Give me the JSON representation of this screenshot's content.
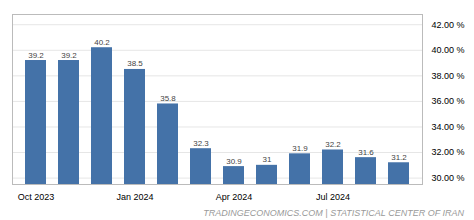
{
  "chart_data": {
    "type": "bar",
    "categories": [
      "Oct 2023",
      null,
      null,
      "Jan 2024",
      null,
      null,
      "Apr 2024",
      null,
      null,
      "Jul 2024",
      null,
      null
    ],
    "values": [
      39.2,
      39.2,
      40.2,
      38.5,
      35.8,
      32.3,
      30.9,
      31.0,
      31.9,
      32.2,
      31.6,
      31.2
    ],
    "color": "#4472a8",
    "ylim": [
      29.5,
      42.8
    ],
    "yticks": [
      {
        "value": 30.0,
        "label": "30.00 %"
      },
      {
        "value": 32.0,
        "label": "32.00 %"
      },
      {
        "value": 34.0,
        "label": "34.00 %"
      },
      {
        "value": 36.0,
        "label": "36.00 %"
      },
      {
        "value": 38.0,
        "label": "38.00 %"
      },
      {
        "value": 40.0,
        "label": "40.00 %"
      },
      {
        "value": 42.0,
        "label": "42.00 %"
      }
    ],
    "grid": true,
    "data_labels": true,
    "annotation": "TRADINGECONOMICS.COM | STATISTICAL CENTER OF IRAN"
  }
}
